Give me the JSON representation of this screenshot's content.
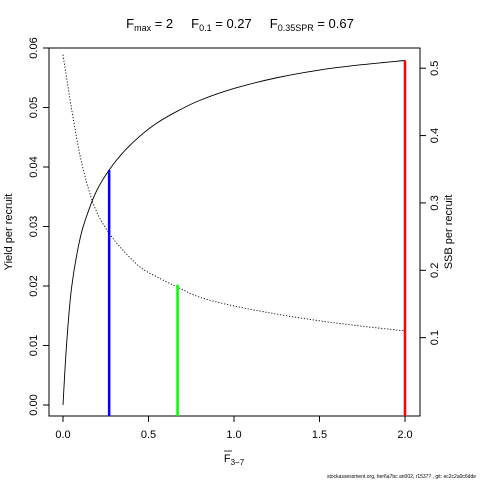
{
  "title": {
    "fmax_base": "F",
    "fmax_sub": "max",
    "fmax_value": " = 2",
    "f01_base": "F",
    "f01_sub": "0.1",
    "f01_value": " = 0.27",
    "fspr_base": "F",
    "fspr_sub": "0.35SPR",
    "fspr_value": " = 0.67"
  },
  "xlabel": {
    "base": "F",
    "sub": "3−7"
  },
  "ylabel_left": "Yield per recruit",
  "ylabel_right": "SSB per recruit",
  "footer": "stockassessment.org, her6a7bc  an002, r15377 , git: ec2c2a0c6dde",
  "chart_data": {
    "type": "line",
    "x_ticks": [
      "0.0",
      "0.5",
      "1.0",
      "1.5",
      "2.0"
    ],
    "x_tick_values": [
      0,
      0.5,
      1,
      1.5,
      2
    ],
    "y_left_ticks": [
      "0.00",
      "0.01",
      "0.02",
      "0.03",
      "0.04",
      "0.05",
      "0.06"
    ],
    "y_left_tick_values": [
      0,
      0.01,
      0.02,
      0.03,
      0.04,
      0.05,
      0.06
    ],
    "y_right_ticks": [
      "0.1",
      "0.2",
      "0.3",
      "0.4",
      "0.5"
    ],
    "y_right_tick_values": [
      0.1,
      0.2,
      0.3,
      0.4,
      0.5
    ],
    "xlim": [
      0,
      2
    ],
    "ylim_left": [
      0,
      0.06
    ],
    "ylim_right": [
      0,
      0.53
    ],
    "series": [
      {
        "axis": "left",
        "style": "solid",
        "color": "#000000",
        "x": [
          0,
          0.02,
          0.05,
          0.1,
          0.15,
          0.2,
          0.27,
          0.35,
          0.45,
          0.55,
          0.67,
          0.8,
          1.0,
          1.25,
          1.5,
          1.75,
          2.0
        ],
        "y": [
          0.0,
          0.0098,
          0.0197,
          0.028,
          0.0327,
          0.0362,
          0.0395,
          0.0424,
          0.0452,
          0.0474,
          0.0494,
          0.0512,
          0.0532,
          0.055,
          0.0563,
          0.0572,
          0.0579
        ]
      },
      {
        "axis": "right",
        "style": "dotted",
        "color": "#000000",
        "x": [
          0,
          0.05,
          0.1,
          0.15,
          0.2,
          0.27,
          0.35,
          0.45,
          0.55,
          0.67,
          0.8,
          1.0,
          1.25,
          1.5,
          1.75,
          2.0
        ],
        "y": [
          0.52,
          0.44,
          0.37,
          0.32,
          0.285,
          0.255,
          0.23,
          0.205,
          0.19,
          0.175,
          0.16,
          0.147,
          0.135,
          0.125,
          0.117,
          0.11
        ]
      }
    ],
    "reference_lines": [
      {
        "name": "F0.1",
        "x": 0.27,
        "y_left": 0.0395,
        "color": "#0000ff"
      },
      {
        "name": "F0.35SPR",
        "x": 0.67,
        "y_left": 0.0202,
        "color": "#00ff00"
      },
      {
        "name": "Fmax",
        "x": 2.0,
        "y_left": 0.0579,
        "color": "#ff0000"
      }
    ],
    "grid": false
  }
}
